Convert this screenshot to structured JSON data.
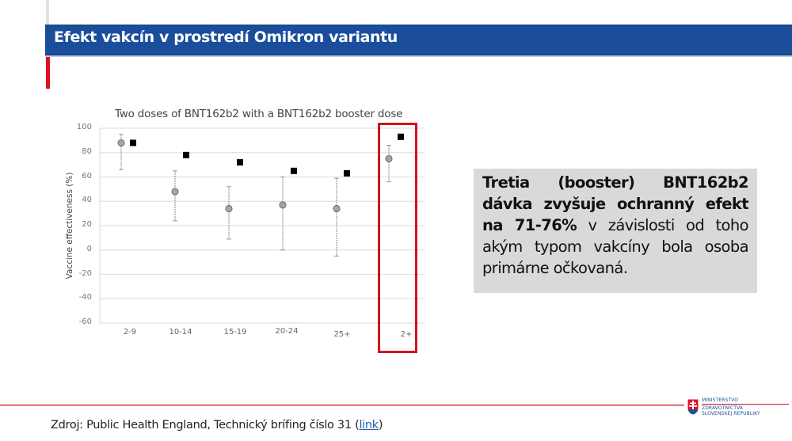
{
  "slide": {
    "title": "Efekt vakcín v prostredí Omikron variantu",
    "colors": {
      "title_bar": "#1a4e9c",
      "accent_red": "#e01024",
      "callout_bg": "#d9d9d9"
    }
  },
  "chart_data": {
    "type": "scatter",
    "title": "Two doses of BNT162b2 with a BNT162b2 booster dose",
    "xlabel": "",
    "ylabel": "Vaccine effectiveness (%)",
    "ylim": [
      -60,
      100
    ],
    "yticks": [
      "100",
      "80",
      "60",
      "40",
      "20",
      "0",
      "-20",
      "-40",
      "-60"
    ],
    "grid": true,
    "legend": null,
    "categories": [
      "2-9",
      "10-14",
      "15-19",
      "20-24",
      "25+",
      "2+"
    ],
    "series": [
      {
        "name": "Estimate (circle, with 95% CI)",
        "marker": "circle",
        "color": "#a6a6a6",
        "values": [
          88,
          48,
          34,
          37,
          34,
          75
        ],
        "ci_low": [
          66,
          24,
          9,
          0,
          -5,
          56
        ],
        "ci_high": [
          95,
          65,
          52,
          60,
          59,
          86
        ]
      },
      {
        "name": "Comparison (square)",
        "marker": "square",
        "color": "#000000",
        "values": [
          88,
          78,
          72,
          65,
          63,
          93
        ]
      }
    ],
    "annotations": [
      {
        "type": "highlight-box",
        "category": "2+",
        "color": "#d2141f"
      }
    ]
  },
  "callout": {
    "bold_text": "Tretia (booster) BNT162b2 dávka zvyšuje ochranný efekt na 71-76%",
    "normal_text": " v závislosti od toho akým typom vakcíny bola osoba primárne očkovaná."
  },
  "footer": {
    "source_prefix": "Zdroj: Public Health England, Technický brífing číslo 31 (",
    "link_label": "link",
    "source_suffix": ")",
    "logo": {
      "line1": "MINISTERSTVO",
      "line2": "ZDRAVOTNÍCTVA",
      "line3": "SLOVENSKEJ REPUBLIKY"
    }
  }
}
